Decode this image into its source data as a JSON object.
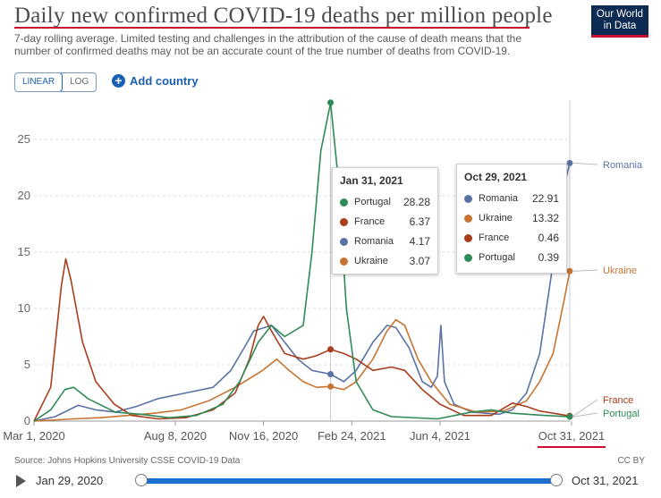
{
  "header": {
    "title": "Daily new confirmed COVID-19 deaths per million people",
    "subtitle": "7-day rolling average. Limited testing and challenges in the attribution of the cause of death means that the number of confirmed deaths may not be an accurate count of the true number of deaths from COVID-19.",
    "logo_line1": "Our World",
    "logo_line2": "in Data"
  },
  "controls": {
    "linear_label": "LINEAR",
    "log_label": "LOG",
    "add_country_label": "Add country"
  },
  "tooltip_left": {
    "date": "Jan 31, 2021",
    "rows": [
      {
        "name": "Portugal",
        "value": "28.28",
        "color": "#2e8b57"
      },
      {
        "name": "France",
        "value": "6.37",
        "color": "#a83e1c"
      },
      {
        "name": "Romania",
        "value": "4.17",
        "color": "#5a73a5"
      },
      {
        "name": "Ukraine",
        "value": "3.07",
        "color": "#c77433"
      }
    ]
  },
  "tooltip_right": {
    "date": "Oct 29, 2021",
    "rows": [
      {
        "name": "Romania",
        "value": "22.91",
        "color": "#5a73a5"
      },
      {
        "name": "Ukraine",
        "value": "13.32",
        "color": "#c77433"
      },
      {
        "name": "France",
        "value": "0.46",
        "color": "#a83e1c"
      },
      {
        "name": "Portugal",
        "value": "0.39",
        "color": "#2e8b57"
      }
    ]
  },
  "footer": {
    "source": "Source: Johns Hopkins University CSSE COVID-19 Data",
    "license": "CC BY",
    "timeline_start": "Jan 29, 2020",
    "timeline_end": "Oct 31, 2021"
  },
  "chart_data": {
    "type": "line",
    "title": "Daily new confirmed COVID-19 deaths per million people",
    "xlabel": "",
    "ylabel": "",
    "xlim": [
      "2020-01-29",
      "2021-10-31"
    ],
    "ylim": [
      0,
      28.5
    ],
    "y_ticks": [
      0,
      5,
      10,
      15,
      20,
      25
    ],
    "x_ticks": [
      "Mar 1, 2020",
      "Aug 8, 2020",
      "Nov 16, 2020",
      "Feb 24, 2021",
      "Jun 4, 2021",
      "Oct 31, 2021"
    ],
    "x_tick_dates": [
      "2020-03-01",
      "2020-08-08",
      "2020-11-16",
      "2021-02-24",
      "2021-06-04",
      "2021-10-31"
    ],
    "grid": "horizontal",
    "legend": "line-end labels",
    "series": [
      {
        "name": "Romania",
        "color": "#5a73a5",
        "points": [
          [
            "2020-03-01",
            0
          ],
          [
            "2020-03-25",
            0.4
          ],
          [
            "2020-04-20",
            1.4
          ],
          [
            "2020-05-10",
            1.0
          ],
          [
            "2020-06-01",
            0.8
          ],
          [
            "2020-06-25",
            1.3
          ],
          [
            "2020-07-20",
            2.0
          ],
          [
            "2020-08-20",
            2.5
          ],
          [
            "2020-09-20",
            3.0
          ],
          [
            "2020-10-10",
            4.5
          ],
          [
            "2020-10-25",
            6.5
          ],
          [
            "2020-11-05",
            8.0
          ],
          [
            "2020-11-25",
            8.5
          ],
          [
            "2020-12-10",
            7.0
          ],
          [
            "2020-12-25",
            5.5
          ],
          [
            "2021-01-10",
            4.5
          ],
          [
            "2021-01-31",
            4.17
          ],
          [
            "2021-02-15",
            3.5
          ],
          [
            "2021-03-01",
            4.5
          ],
          [
            "2021-03-20",
            7.0
          ],
          [
            "2021-04-05",
            8.5
          ],
          [
            "2021-04-15",
            8.3
          ],
          [
            "2021-04-30",
            6.5
          ],
          [
            "2021-05-15",
            3.5
          ],
          [
            "2021-05-25",
            3.0
          ],
          [
            "2021-06-01",
            4.0
          ],
          [
            "2021-06-05",
            8.5
          ],
          [
            "2021-06-09",
            3.5
          ],
          [
            "2021-06-20",
            1.5
          ],
          [
            "2021-07-10",
            0.8
          ],
          [
            "2021-08-10",
            0.6
          ],
          [
            "2021-08-25",
            1.0
          ],
          [
            "2021-09-10",
            2.5
          ],
          [
            "2021-09-25",
            6.0
          ],
          [
            "2021-10-10",
            14.0
          ],
          [
            "2021-10-20",
            20.0
          ],
          [
            "2021-10-29",
            22.91
          ]
        ]
      },
      {
        "name": "Ukraine",
        "color": "#c77433",
        "points": [
          [
            "2020-03-01",
            0
          ],
          [
            "2020-04-15",
            0.2
          ],
          [
            "2020-05-15",
            0.3
          ],
          [
            "2020-06-15",
            0.5
          ],
          [
            "2020-07-15",
            0.7
          ],
          [
            "2020-08-15",
            1.0
          ],
          [
            "2020-09-15",
            1.8
          ],
          [
            "2020-10-15",
            3.0
          ],
          [
            "2020-11-15",
            4.5
          ],
          [
            "2020-12-01",
            5.5
          ],
          [
            "2020-12-15",
            4.5
          ],
          [
            "2020-12-31",
            3.5
          ],
          [
            "2021-01-15",
            3.0
          ],
          [
            "2021-01-31",
            3.07
          ],
          [
            "2021-02-15",
            2.8
          ],
          [
            "2021-03-01",
            3.5
          ],
          [
            "2021-03-20",
            5.5
          ],
          [
            "2021-04-05",
            8.0
          ],
          [
            "2021-04-15",
            9.0
          ],
          [
            "2021-04-25",
            8.5
          ],
          [
            "2021-05-10",
            5.5
          ],
          [
            "2021-05-25",
            3.5
          ],
          [
            "2021-06-15",
            1.5
          ],
          [
            "2021-07-15",
            0.8
          ],
          [
            "2021-08-15",
            0.9
          ],
          [
            "2021-09-10",
            1.8
          ],
          [
            "2021-09-25",
            3.5
          ],
          [
            "2021-10-10",
            6.0
          ],
          [
            "2021-10-22",
            10.5
          ],
          [
            "2021-10-29",
            13.32
          ]
        ]
      },
      {
        "name": "France",
        "color": "#a83e1c",
        "points": [
          [
            "2020-03-01",
            0
          ],
          [
            "2020-03-20",
            3.0
          ],
          [
            "2020-04-01",
            12.0
          ],
          [
            "2020-04-06",
            14.4
          ],
          [
            "2020-04-12",
            12.5
          ],
          [
            "2020-04-25",
            7.0
          ],
          [
            "2020-05-10",
            3.5
          ],
          [
            "2020-05-31",
            1.5
          ],
          [
            "2020-06-20",
            0.5
          ],
          [
            "2020-07-20",
            0.2
          ],
          [
            "2020-08-20",
            0.3
          ],
          [
            "2020-09-20",
            1.0
          ],
          [
            "2020-10-15",
            2.5
          ],
          [
            "2020-10-31",
            5.5
          ],
          [
            "2020-11-10",
            8.5
          ],
          [
            "2020-11-16",
            9.3
          ],
          [
            "2020-11-25",
            8.0
          ],
          [
            "2020-12-10",
            6.0
          ],
          [
            "2020-12-31",
            5.5
          ],
          [
            "2021-01-15",
            5.8
          ],
          [
            "2021-01-31",
            6.37
          ],
          [
            "2021-02-15",
            6.0
          ],
          [
            "2021-03-01",
            5.5
          ],
          [
            "2021-03-20",
            4.5
          ],
          [
            "2021-04-10",
            4.8
          ],
          [
            "2021-04-25",
            4.5
          ],
          [
            "2021-05-15",
            2.8
          ],
          [
            "2021-06-04",
            1.5
          ],
          [
            "2021-07-01",
            0.5
          ],
          [
            "2021-08-01",
            0.5
          ],
          [
            "2021-08-25",
            1.6
          ],
          [
            "2021-09-10",
            1.3
          ],
          [
            "2021-09-25",
            0.9
          ],
          [
            "2021-10-29",
            0.46
          ]
        ]
      },
      {
        "name": "Portugal",
        "color": "#2e8b57",
        "points": [
          [
            "2020-03-01",
            0
          ],
          [
            "2020-03-20",
            1.0
          ],
          [
            "2020-04-05",
            2.8
          ],
          [
            "2020-04-15",
            3.0
          ],
          [
            "2020-05-01",
            2.0
          ],
          [
            "2020-06-01",
            0.8
          ],
          [
            "2020-07-01",
            0.6
          ],
          [
            "2020-08-01",
            0.3
          ],
          [
            "2020-09-01",
            0.5
          ],
          [
            "2020-10-01",
            1.5
          ],
          [
            "2020-10-20",
            3.5
          ],
          [
            "2020-11-10",
            7.0
          ],
          [
            "2020-11-25",
            8.5
          ],
          [
            "2020-12-10",
            7.5
          ],
          [
            "2020-12-31",
            8.5
          ],
          [
            "2021-01-10",
            15.0
          ],
          [
            "2021-01-20",
            24.0
          ],
          [
            "2021-01-31",
            28.28
          ],
          [
            "2021-02-08",
            22.0
          ],
          [
            "2021-02-18",
            10.0
          ],
          [
            "2021-03-01",
            3.5
          ],
          [
            "2021-03-20",
            1.0
          ],
          [
            "2021-04-10",
            0.4
          ],
          [
            "2021-06-01",
            0.2
          ],
          [
            "2021-07-10",
            0.8
          ],
          [
            "2021-08-01",
            1.0
          ],
          [
            "2021-08-25",
            0.7
          ],
          [
            "2021-10-01",
            0.5
          ],
          [
            "2021-10-29",
            0.39
          ]
        ]
      }
    ]
  }
}
